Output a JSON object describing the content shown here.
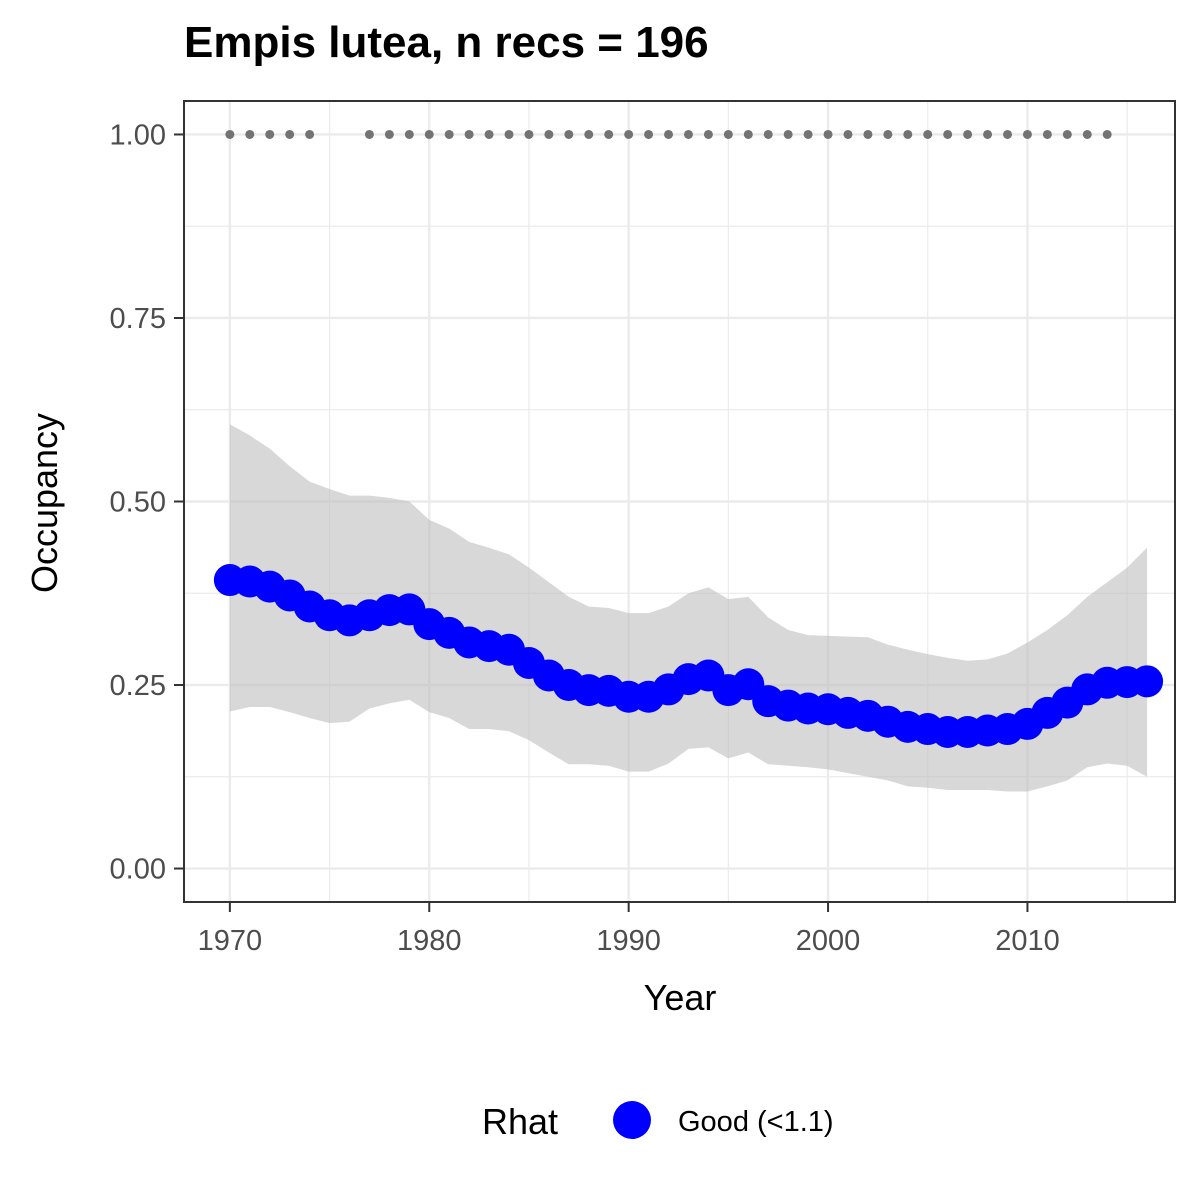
{
  "chart_data": {
    "type": "line",
    "title": "Empis lutea, n recs = 196",
    "xlabel": "Year",
    "ylabel": "Occupancy",
    "xlim": [
      1967.7,
      2017.4
    ],
    "ylim": [
      -0.0456,
      1.0456
    ],
    "xticks": [
      1970,
      1980,
      1990,
      2000,
      2010
    ],
    "xtick_labels": [
      "1970",
      "1980",
      "1990",
      "2000",
      "2010"
    ],
    "yticks": [
      0,
      0.25,
      0.5,
      0.75,
      1
    ],
    "ytick_labels": [
      "0.00",
      "0.25",
      "0.50",
      "0.75",
      "1.00"
    ],
    "grid": true,
    "legend": {
      "title": "Rhat",
      "position": "bottom",
      "items": [
        {
          "label": "Good (<1.1)",
          "color": "#0000ff"
        }
      ]
    },
    "colors": {
      "series": "#0000ff",
      "ribbon": "#bebebe",
      "record_points": "#737373",
      "grid": "#ebebeb",
      "panel_border": "#333333"
    },
    "x": [
      1970,
      1971,
      1972,
      1973,
      1974,
      1975,
      1976,
      1977,
      1978,
      1979,
      1980,
      1981,
      1982,
      1983,
      1984,
      1985,
      1986,
      1987,
      1988,
      1989,
      1990,
      1991,
      1992,
      1993,
      1994,
      1995,
      1996,
      1997,
      1998,
      1999,
      2000,
      2001,
      2002,
      2003,
      2004,
      2005,
      2006,
      2007,
      2008,
      2009,
      2010,
      2011,
      2012,
      2013,
      2014,
      2015,
      2016
    ],
    "series": [
      {
        "name": "Good (<1.1)",
        "values": [
          0.393,
          0.391,
          0.384,
          0.372,
          0.357,
          0.345,
          0.338,
          0.345,
          0.352,
          0.353,
          0.333,
          0.321,
          0.308,
          0.303,
          0.298,
          0.28,
          0.263,
          0.25,
          0.243,
          0.242,
          0.234,
          0.234,
          0.244,
          0.258,
          0.263,
          0.243,
          0.251,
          0.228,
          0.222,
          0.218,
          0.217,
          0.212,
          0.208,
          0.2,
          0.193,
          0.19,
          0.186,
          0.186,
          0.188,
          0.19,
          0.197,
          0.212,
          0.226,
          0.244,
          0.253,
          0.254,
          0.255
        ]
      }
    ],
    "ribbon": {
      "lower": [
        0.214,
        0.22,
        0.22,
        0.213,
        0.205,
        0.198,
        0.2,
        0.218,
        0.225,
        0.23,
        0.213,
        0.205,
        0.19,
        0.19,
        0.187,
        0.175,
        0.158,
        0.142,
        0.142,
        0.14,
        0.132,
        0.132,
        0.143,
        0.163,
        0.165,
        0.15,
        0.158,
        0.142,
        0.14,
        0.138,
        0.135,
        0.13,
        0.125,
        0.12,
        0.112,
        0.11,
        0.107,
        0.107,
        0.107,
        0.105,
        0.105,
        0.112,
        0.12,
        0.138,
        0.143,
        0.14,
        0.125
      ],
      "upper": [
        0.605,
        0.59,
        0.572,
        0.548,
        0.527,
        0.517,
        0.508,
        0.508,
        0.505,
        0.5,
        0.475,
        0.463,
        0.445,
        0.437,
        0.428,
        0.41,
        0.39,
        0.37,
        0.357,
        0.355,
        0.348,
        0.348,
        0.357,
        0.375,
        0.383,
        0.367,
        0.37,
        0.342,
        0.325,
        0.318,
        0.317,
        0.316,
        0.315,
        0.305,
        0.298,
        0.292,
        0.287,
        0.283,
        0.285,
        0.293,
        0.308,
        0.325,
        0.345,
        0.37,
        0.39,
        0.41,
        0.437
      ]
    },
    "record_years": [
      1970,
      1971,
      1972,
      1973,
      1974,
      1977,
      1978,
      1979,
      1980,
      1981,
      1982,
      1983,
      1984,
      1985,
      1986,
      1987,
      1988,
      1989,
      1990,
      1991,
      1992,
      1993,
      1994,
      1995,
      1996,
      1997,
      1998,
      1999,
      2000,
      2001,
      2002,
      2003,
      2004,
      2005,
      2006,
      2007,
      2008,
      2009,
      2010,
      2011,
      2012,
      2013,
      2014
    ],
    "record_value": 1.0
  }
}
